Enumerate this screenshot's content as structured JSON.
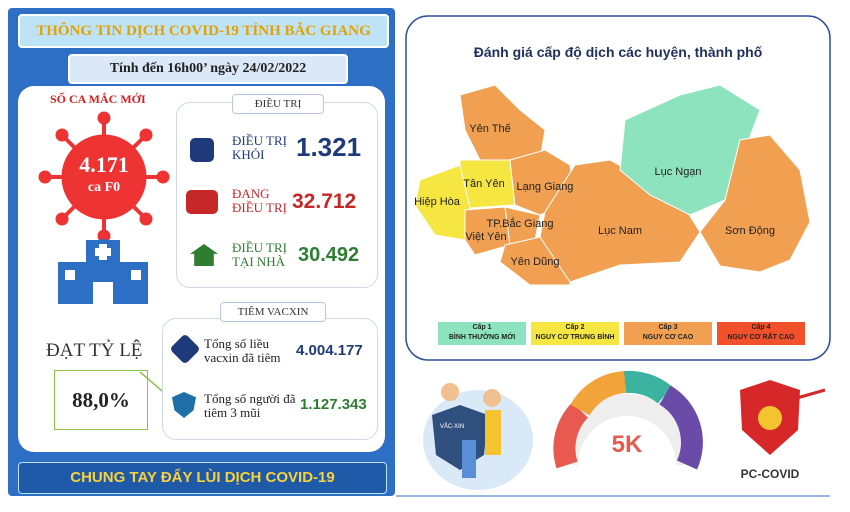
{
  "header": {
    "title": "THÔNG TIN DỊCH COVID-19 TỈNH BẮC GIANG",
    "date": "Tính đến 16h00’ ngày 24/02/2022"
  },
  "new_cases": {
    "label": "SỐ CA MẮC MỚI",
    "value": "4.171",
    "unit": "ca F0"
  },
  "treatment": {
    "title": "ĐIỀU TRỊ",
    "rows": [
      {
        "label": "ĐIỀU TRỊ KHỎI",
        "value": "1.321"
      },
      {
        "label": "ĐANG ĐIỀU TRỊ",
        "value": "32.712"
      },
      {
        "label": "ĐIỀU TRỊ TẠI NHÀ",
        "value": "30.492"
      }
    ]
  },
  "rate": {
    "label": "ĐẠT TỶ LỆ",
    "value": "88,0%"
  },
  "vaccine": {
    "title": "TIÊM VACXIN",
    "rows": [
      {
        "label": "Tổng số liều vacxin đã tiêm",
        "value": "4.004.177"
      },
      {
        "label": "Tổng số người đã tiêm 3 mũi",
        "value": "1.127.343"
      }
    ]
  },
  "footer": "CHUNG TAY ĐẨY LÙI DỊCH COVID-19",
  "map": {
    "title": "Đánh giá cấp độ dịch các huyện, thành phố",
    "districts": [
      "Yên Thế",
      "Tân Yên",
      "Hiệp Hòa",
      "Lạng Giang",
      "Việt Yên",
      "TP.Bắc Giang",
      "Yên Dũng",
      "Lục Nam",
      "Lục Ngạn",
      "Sơn Động"
    ],
    "legend": [
      {
        "level": "Cấp 1",
        "label": "BÌNH THƯỜNG MỚI"
      },
      {
        "level": "Cấp 2",
        "label": "NGUY CƠ TRUNG BÌNH"
      },
      {
        "level": "Cấp 3",
        "label": "NGUY CƠ CAO"
      },
      {
        "level": "Cấp 4",
        "label": "NGUY CƠ RẤT CAO"
      }
    ]
  },
  "icons": {
    "badge": "VẮC-XIN",
    "five_k": "5K",
    "app": "PC-COVID"
  }
}
